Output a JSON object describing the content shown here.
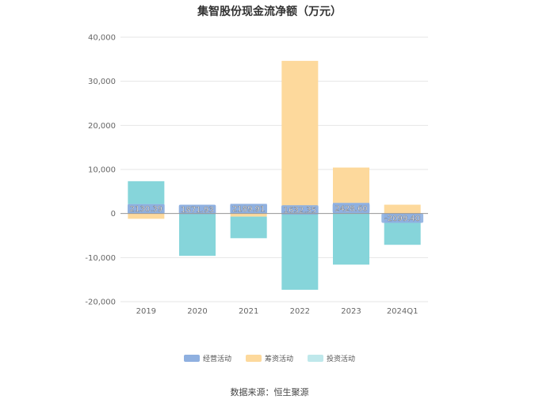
{
  "chart_data": {
    "type": "bar",
    "title": "集智股份现金流净额（万元）",
    "categories": [
      "2019",
      "2020",
      "2021",
      "2022",
      "2023",
      "2024Q1"
    ],
    "series": [
      {
        "name": "经营活动",
        "values": [
          2130.39,
          1871.93,
          2189.91,
          1632.35,
          2428.6,
          -2099.4
        ]
      },
      {
        "name": "筹资活动",
        "values": [
          -1200,
          0,
          -700,
          33000,
          8000,
          2000
        ]
      },
      {
        "name": "投资活动",
        "values": [
          5200,
          -9600,
          -4900,
          -17300,
          -11600,
          -5000
        ]
      }
    ],
    "data_labels": [
      "2130.39",
      "1871.93",
      "2189.91",
      "1632.35",
      "2428.60",
      "-2099.40"
    ],
    "yticks": [
      "40,000",
      "30,000",
      "20,000",
      "10,000",
      "0",
      "-10,000",
      "-20,000"
    ],
    "ylim": [
      -20000,
      40000
    ],
    "stacked": true,
    "grid": true,
    "legend_position": "bottom",
    "colors": {
      "经营活动": "#8FB0E0",
      "筹资活动": "#FDD99C",
      "投资活动": "#86D5DA"
    }
  },
  "source": "数据来源：恒生聚源"
}
